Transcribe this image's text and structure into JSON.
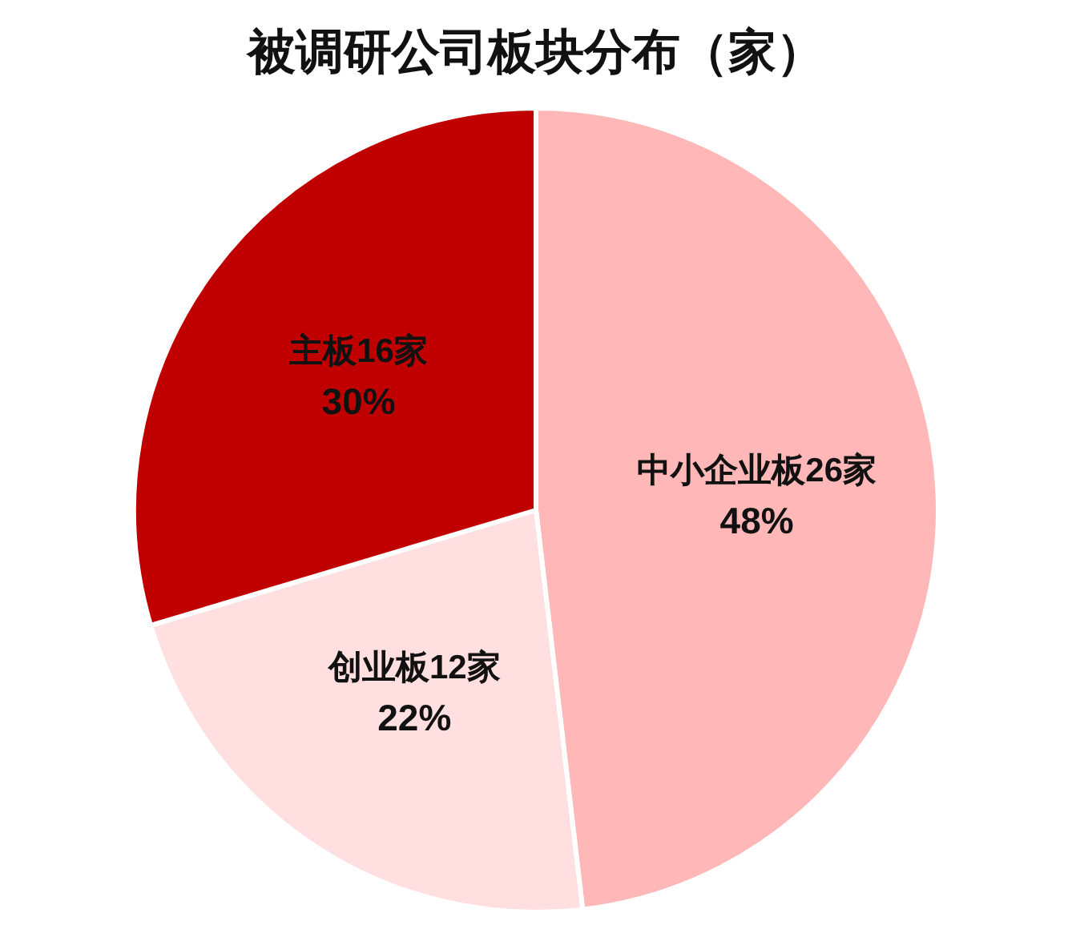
{
  "chart_data": {
    "type": "pie",
    "title": "被调研公司板块分布（家）",
    "categories": [
      "中小企业板",
      "创业板",
      "主板"
    ],
    "values": [
      26,
      12,
      16
    ],
    "value_labels": [
      "26家\n48%",
      "12家\n22%",
      "16家\n30%"
    ],
    "colors": [
      "#ffb7b7",
      "#ffdfdf",
      "#c00000"
    ],
    "legend": false
  }
}
